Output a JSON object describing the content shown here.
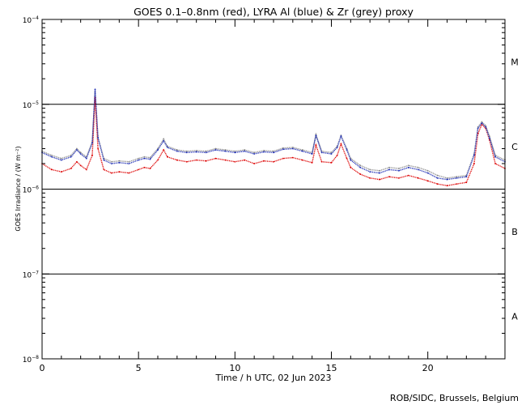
{
  "chart_data": {
    "type": "scatter",
    "title": "GOES 0.1–0.8nm (red), LYRA Al (blue) & Zr (grey) proxy",
    "xlabel": "Time / h UTC, 02 Jun 2023",
    "ylabel": "GOES Irradiance / (W m⁻²)",
    "credit": "ROB/SIDC, Brussels, Belgium",
    "x_scale": "linear",
    "y_scale": "log",
    "xlim": [
      0,
      24
    ],
    "ylim": [
      1e-08,
      0.0001
    ],
    "x_ticks": [
      0,
      5,
      10,
      15,
      20
    ],
    "y_ticks": [
      {
        "base": "10",
        "exp": "−8",
        "value": 1e-08
      },
      {
        "base": "10",
        "exp": "−7",
        "value": 1e-07
      },
      {
        "base": "10",
        "exp": "−6",
        "value": 1e-06
      },
      {
        "base": "10",
        "exp": "−5",
        "value": 1e-05
      },
      {
        "base": "10",
        "exp": "−4",
        "value": 0.0001
      }
    ],
    "flare_thresholds": [
      1e-07,
      1e-06,
      1e-05
    ],
    "flare_classes": [
      {
        "label": "A",
        "value": 3.16e-08
      },
      {
        "label": "B",
        "value": 3.16e-07
      },
      {
        "label": "C",
        "value": 3.16e-06
      },
      {
        "label": "M",
        "value": 3.16e-05
      }
    ],
    "series": [
      {
        "color": "#dd0000",
        "x": [
          0,
          0.5,
          1,
          1.5,
          1.8,
          2,
          2.3,
          2.6,
          2.75,
          2.9,
          3.2,
          3.6,
          4,
          4.5,
          5,
          5.3,
          5.6,
          6,
          6.3,
          6.5,
          7,
          7.5,
          8,
          8.5,
          9,
          9.5,
          10,
          10.5,
          11,
          11.5,
          12,
          12.5,
          13,
          13.5,
          14,
          14.2,
          14.5,
          15,
          15.3,
          15.5,
          15.8,
          16,
          16.5,
          17,
          17.5,
          18,
          18.5,
          19,
          19.5,
          20,
          20.5,
          21,
          21.5,
          22,
          22.4,
          22.6,
          22.8,
          23,
          23.2,
          23.5,
          24
        ],
        "y": [
          2e-06,
          1.7e-06,
          1.6e-06,
          1.75e-06,
          2.1e-06,
          1.9e-06,
          1.7e-06,
          2.5e-06,
          1.2e-05,
          3e-06,
          1.7e-06,
          1.55e-06,
          1.6e-06,
          1.55e-06,
          1.7e-06,
          1.8e-06,
          1.75e-06,
          2.2e-06,
          2.9e-06,
          2.4e-06,
          2.2e-06,
          2.1e-06,
          2.2e-06,
          2.15e-06,
          2.3e-06,
          2.2e-06,
          2.1e-06,
          2.2e-06,
          2e-06,
          2.15e-06,
          2.1e-06,
          2.3e-06,
          2.35e-06,
          2.2e-06,
          2.05e-06,
          3.3e-06,
          2.1e-06,
          2.05e-06,
          2.5e-06,
          3.4e-06,
          2.3e-06,
          1.8e-06,
          1.5e-06,
          1.35e-06,
          1.3e-06,
          1.4e-06,
          1.35e-06,
          1.45e-06,
          1.35e-06,
          1.25e-06,
          1.15e-06,
          1.1e-06,
          1.15e-06,
          1.2e-06,
          2e-06,
          4.5e-06,
          5.8e-06,
          5.2e-06,
          3.8e-06,
          2e-06,
          1.75e-06
        ]
      },
      {
        "color": "#1e2db4",
        "x": [
          0,
          0.5,
          1,
          1.5,
          1.8,
          2,
          2.3,
          2.6,
          2.75,
          2.9,
          3.2,
          3.6,
          4,
          4.5,
          5,
          5.3,
          5.6,
          6,
          6.3,
          6.5,
          7,
          7.5,
          8,
          8.5,
          9,
          9.5,
          10,
          10.5,
          11,
          11.5,
          12,
          12.5,
          13,
          13.5,
          14,
          14.2,
          14.5,
          15,
          15.3,
          15.5,
          15.8,
          16,
          16.5,
          17,
          17.5,
          18,
          18.5,
          19,
          19.5,
          20,
          20.5,
          21,
          21.5,
          22,
          22.4,
          22.6,
          22.8,
          23,
          23.2,
          23.5,
          24
        ],
        "y": [
          2.7e-06,
          2.4e-06,
          2.2e-06,
          2.4e-06,
          2.9e-06,
          2.6e-06,
          2.3e-06,
          3.5e-06,
          1.5e-05,
          4e-06,
          2.2e-06,
          2e-06,
          2.05e-06,
          2e-06,
          2.2e-06,
          2.3e-06,
          2.25e-06,
          2.9e-06,
          3.7e-06,
          3.1e-06,
          2.8e-06,
          2.7e-06,
          2.75e-06,
          2.7e-06,
          2.9e-06,
          2.8e-06,
          2.7e-06,
          2.8e-06,
          2.6e-06,
          2.75e-06,
          2.7e-06,
          2.95e-06,
          3e-06,
          2.8e-06,
          2.6e-06,
          4.3e-06,
          2.7e-06,
          2.6e-06,
          3.1e-06,
          4.2e-06,
          2.9e-06,
          2.2e-06,
          1.8e-06,
          1.6e-06,
          1.55e-06,
          1.7e-06,
          1.65e-06,
          1.8e-06,
          1.7e-06,
          1.55e-06,
          1.35e-06,
          1.3e-06,
          1.35e-06,
          1.4e-06,
          2.5e-06,
          5.2e-06,
          6e-06,
          5.4e-06,
          4e-06,
          2.4e-06,
          2.1e-06
        ]
      },
      {
        "color": "#8c8c8c",
        "x": [
          0,
          0.5,
          1,
          1.5,
          1.8,
          2,
          2.3,
          2.6,
          2.75,
          2.9,
          3.2,
          3.6,
          4,
          4.5,
          5,
          5.3,
          5.6,
          6,
          6.3,
          6.5,
          7,
          7.5,
          8,
          8.5,
          9,
          9.5,
          10,
          10.5,
          11,
          11.5,
          12,
          12.5,
          13,
          13.5,
          14,
          14.2,
          14.5,
          15,
          15.3,
          15.5,
          15.8,
          16,
          16.5,
          17,
          17.5,
          18,
          18.5,
          19,
          19.5,
          20,
          20.5,
          21,
          21.5,
          22,
          22.4,
          22.6,
          22.8,
          23,
          23.2,
          23.5,
          24
        ],
        "y": [
          2.8e-06,
          2.5e-06,
          2.3e-06,
          2.5e-06,
          3e-06,
          2.7e-06,
          2.4e-06,
          3.6e-06,
          1.4e-05,
          4.1e-06,
          2.3e-06,
          2.1e-06,
          2.15e-06,
          2.1e-06,
          2.3e-06,
          2.4e-06,
          2.35e-06,
          3e-06,
          3.9e-06,
          3.2e-06,
          2.9e-06,
          2.8e-06,
          2.85e-06,
          2.8e-06,
          3e-06,
          2.9e-06,
          2.8e-06,
          2.9e-06,
          2.7e-06,
          2.85e-06,
          2.8e-06,
          3.05e-06,
          3.1e-06,
          2.9e-06,
          2.7e-06,
          4.4e-06,
          2.8e-06,
          2.7e-06,
          3.2e-06,
          4.3e-06,
          3e-06,
          2.3e-06,
          1.9e-06,
          1.7e-06,
          1.65e-06,
          1.8e-06,
          1.75e-06,
          1.9e-06,
          1.8e-06,
          1.65e-06,
          1.45e-06,
          1.35e-06,
          1.4e-06,
          1.45e-06,
          2.6e-06,
          5.4e-06,
          6.2e-06,
          5.6e-06,
          4.2e-06,
          2.5e-06,
          2.2e-06
        ]
      }
    ]
  }
}
